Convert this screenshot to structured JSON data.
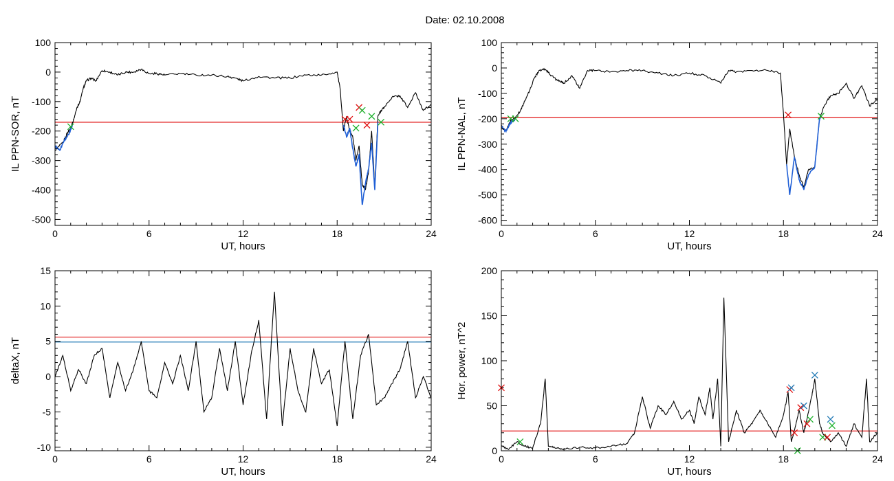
{
  "page": {
    "date_label": "Date:  02.10.2008"
  },
  "chart_data": [
    {
      "id": "p1",
      "type": "line",
      "ylabel": "IL PPN-SOR, nT",
      "xlabel": "UT, hours",
      "xlim": [
        0,
        24
      ],
      "ylim": [
        -520,
        100
      ],
      "x_ticks": [
        0,
        6,
        12,
        18,
        24
      ],
      "x_tick_labels": [
        "0",
        "6",
        "12",
        "18",
        "24"
      ],
      "y_ticks": [
        100,
        0,
        -100,
        -200,
        -300,
        -400,
        -500
      ],
      "y_tick_labels": [
        "100",
        "0",
        "-100",
        "-200",
        "-300",
        "-400",
        "-500"
      ],
      "series": [
        {
          "role": "signal",
          "color": "#000000",
          "x": [
            0,
            0.5,
            0.8,
            1.0,
            1.2,
            1.4,
            1.6,
            1.8,
            2.0,
            2.3,
            2.6,
            3.0,
            3.5,
            4.0,
            4.5,
            5.0,
            5.5,
            6.0,
            6.5,
            7.0,
            8.0,
            9.0,
            10.0,
            11.0,
            11.5,
            12.0,
            13.0,
            14.0,
            15.0,
            16.0,
            17.0,
            18.0,
            18.2,
            18.4,
            18.6,
            18.8,
            19.0,
            19.2,
            19.4,
            19.6,
            19.8,
            20.0,
            20.2,
            20.4,
            20.6,
            20.8,
            21.0,
            21.5,
            22.0,
            22.5,
            23.0,
            23.5,
            24.0
          ],
          "y": [
            -265,
            -240,
            -205,
            -190,
            -160,
            -120,
            -100,
            -55,
            -30,
            -20,
            -30,
            5,
            0,
            -10,
            0,
            0,
            10,
            -5,
            -5,
            -10,
            -5,
            -10,
            -10,
            -15,
            -20,
            -30,
            -15,
            -20,
            -20,
            -10,
            -10,
            0,
            -60,
            -200,
            -150,
            -200,
            -220,
            -300,
            -250,
            -380,
            -400,
            -340,
            -200,
            -390,
            -150,
            -130,
            -120,
            -85,
            -80,
            -120,
            -70,
            -130,
            -110
          ]
        },
        {
          "role": "substorm",
          "color": "#1f5fd6",
          "x": [
            0,
            0.3,
            0.6,
            0.9,
            1.1
          ],
          "y": [
            -250,
            -265,
            -230,
            -210,
            -180
          ]
        },
        {
          "role": "substorm",
          "color": "#1f5fd6",
          "x": [
            18.4,
            18.6,
            18.8,
            19.0,
            19.2,
            19.4,
            19.6,
            19.8,
            20.0,
            20.2,
            20.4,
            20.6
          ],
          "y": [
            -180,
            -220,
            -190,
            -260,
            -320,
            -280,
            -450,
            -380,
            -330,
            -240,
            -400,
            -170
          ]
        }
      ],
      "threshold_lines": [
        {
          "y": -170,
          "color": "#e01010"
        }
      ],
      "markers": [
        {
          "x": 1.0,
          "y": -185,
          "color": "#1ab02a"
        },
        {
          "x": 18.5,
          "y": -160,
          "color": "#e01010"
        },
        {
          "x": 18.8,
          "y": -160,
          "color": "#e01010"
        },
        {
          "x": 19.2,
          "y": -190,
          "color": "#1ab02a"
        },
        {
          "x": 19.4,
          "y": -120,
          "color": "#e01010"
        },
        {
          "x": 19.6,
          "y": -130,
          "color": "#1ab02a"
        },
        {
          "x": 19.9,
          "y": -180,
          "color": "#e01010"
        },
        {
          "x": 20.2,
          "y": -150,
          "color": "#1ab02a"
        },
        {
          "x": 20.8,
          "y": -170,
          "color": "#1ab02a"
        }
      ]
    },
    {
      "id": "p2",
      "type": "line",
      "ylabel": "IL PPN-NAL, nT",
      "xlabel": "UT, hours",
      "xlim": [
        0,
        24
      ],
      "ylim": [
        -620,
        100
      ],
      "x_ticks": [
        0,
        6,
        12,
        18,
        24
      ],
      "x_tick_labels": [
        "0",
        "6",
        "12",
        "18",
        "24"
      ],
      "y_ticks": [
        100,
        0,
        -100,
        -200,
        -300,
        -400,
        -500,
        -600
      ],
      "y_tick_labels": [
        "100",
        "0",
        "-100",
        "-200",
        "-300",
        "-400",
        "-500",
        "-600"
      ],
      "series": [
        {
          "role": "signal",
          "color": "#000000",
          "x": [
            0,
            0.3,
            0.6,
            0.9,
            1.2,
            1.5,
            1.8,
            2.1,
            2.4,
            2.8,
            3.2,
            3.6,
            4.0,
            4.5,
            5.0,
            5.5,
            6.0,
            7.0,
            8.0,
            9.0,
            10.0,
            11.0,
            12.0,
            13.0,
            14.0,
            14.5,
            15.0,
            16.0,
            17.0,
            17.8,
            18.0,
            18.2,
            18.4,
            18.7,
            19.0,
            19.3,
            19.6,
            20.0,
            20.3,
            20.6,
            21.0,
            21.5,
            22.0,
            22.5,
            23.0,
            23.5,
            24.0
          ],
          "y": [
            -230,
            -250,
            -205,
            -195,
            -170,
            -130,
            -90,
            -40,
            -10,
            -5,
            -30,
            -50,
            -60,
            -30,
            -80,
            -10,
            -10,
            -15,
            -10,
            -10,
            -20,
            -30,
            -20,
            -30,
            -60,
            -10,
            -15,
            -10,
            -10,
            -20,
            -180,
            -380,
            -240,
            -350,
            -420,
            -470,
            -400,
            -390,
            -200,
            -150,
            -110,
            -100,
            -60,
            -120,
            -70,
            -150,
            -120
          ]
        },
        {
          "role": "substorm",
          "color": "#1f5fd6",
          "x": [
            0,
            0.3,
            0.6,
            0.9
          ],
          "y": [
            -230,
            -250,
            -215,
            -200
          ]
        },
        {
          "role": "substorm",
          "color": "#1f5fd6",
          "x": [
            18.2,
            18.4,
            18.7,
            19.0,
            19.3,
            19.6,
            20.0,
            20.3,
            20.4
          ],
          "y": [
            -380,
            -500,
            -350,
            -440,
            -480,
            -420,
            -390,
            -200,
            -190
          ]
        }
      ],
      "threshold_lines": [
        {
          "y": -195,
          "color": "#e01010"
        }
      ],
      "markers": [
        {
          "x": 0.6,
          "y": -200,
          "color": "#1ab02a"
        },
        {
          "x": 0.9,
          "y": -200,
          "color": "#1ab02a"
        },
        {
          "x": 18.3,
          "y": -185,
          "color": "#e01010"
        },
        {
          "x": 20.4,
          "y": -190,
          "color": "#1ab02a"
        }
      ]
    },
    {
      "id": "p3",
      "type": "line",
      "ylabel": "deltaX, nT",
      "xlabel": "UT, hours",
      "xlim": [
        0,
        24
      ],
      "ylim": [
        -10.5,
        15
      ],
      "x_ticks": [
        0,
        6,
        12,
        18,
        24
      ],
      "x_tick_labels": [
        "0",
        "6",
        "12",
        "18",
        "24"
      ],
      "y_ticks": [
        15,
        10,
        5,
        0,
        -5,
        -10
      ],
      "y_tick_labels": [
        "15",
        "10",
        "5",
        "0",
        "-5",
        "-10"
      ],
      "series": [
        {
          "role": "signal",
          "color": "#000000",
          "x": [
            0,
            0.5,
            1.0,
            1.5,
            2.0,
            2.5,
            3.0,
            3.5,
            4.0,
            4.5,
            5.0,
            5.5,
            6.0,
            6.5,
            7.0,
            7.5,
            8.0,
            8.5,
            9.0,
            9.5,
            10.0,
            10.5,
            11.0,
            11.5,
            12.0,
            12.5,
            13.0,
            13.5,
            14.0,
            14.5,
            15.0,
            15.5,
            16.0,
            16.5,
            17.0,
            17.5,
            18.0,
            18.5,
            19.0,
            19.5,
            20.0,
            20.5,
            21.0,
            21.5,
            22.0,
            22.5,
            23.0,
            23.5,
            24.0
          ],
          "y": [
            0,
            3,
            -2,
            1,
            -1,
            3,
            4,
            -3,
            2,
            -2,
            1,
            5,
            -2,
            -3,
            2,
            -1,
            3,
            -2,
            5,
            -5,
            -3,
            4,
            -2,
            5,
            -4,
            3,
            8,
            -6,
            12,
            -7,
            4,
            -2,
            -5,
            4,
            -1,
            1,
            -7,
            5,
            -6,
            3,
            6,
            -4,
            -3,
            -1,
            1,
            5,
            -3,
            0,
            -3
          ]
        }
      ],
      "threshold_lines": [
        {
          "y": 5.6,
          "color": "#e01010"
        },
        {
          "y": 4.9,
          "color": "#1f78b4"
        }
      ],
      "markers": []
    },
    {
      "id": "p4",
      "type": "line",
      "ylabel": "Hor. power, nT^2",
      "xlabel": "UT, hours",
      "xlim": [
        0,
        24
      ],
      "ylim": [
        0,
        200
      ],
      "x_ticks": [
        0,
        6,
        12,
        18,
        24
      ],
      "x_tick_labels": [
        "0",
        "6",
        "12",
        "18",
        "24"
      ],
      "y_ticks": [
        200,
        150,
        100,
        50,
        0
      ],
      "y_tick_labels": [
        "200",
        "150",
        "100",
        "50",
        "0"
      ],
      "series": [
        {
          "role": "signal",
          "color": "#000000",
          "x": [
            0,
            0.5,
            1.0,
            1.5,
            2.0,
            2.5,
            2.8,
            3.0,
            3.5,
            4.0,
            5.0,
            6.0,
            7.0,
            8.0,
            8.5,
            9.0,
            9.5,
            10.0,
            10.5,
            11.0,
            11.5,
            12.0,
            12.3,
            12.6,
            13.0,
            13.3,
            13.5,
            13.8,
            14.0,
            14.2,
            14.5,
            15.0,
            15.5,
            16.0,
            16.5,
            17.0,
            17.5,
            18.0,
            18.3,
            18.5,
            18.8,
            19.0,
            19.3,
            19.5,
            19.8,
            20.0,
            20.3,
            20.5,
            21.0,
            21.5,
            22.0,
            22.5,
            23.0,
            23.3,
            23.5,
            24.0
          ],
          "y": [
            5,
            2,
            10,
            5,
            3,
            30,
            80,
            5,
            3,
            2,
            4,
            3,
            5,
            8,
            20,
            60,
            25,
            50,
            40,
            55,
            35,
            45,
            30,
            60,
            40,
            70,
            35,
            80,
            5,
            170,
            10,
            45,
            20,
            30,
            45,
            30,
            15,
            40,
            65,
            10,
            30,
            45,
            20,
            35,
            60,
            80,
            30,
            20,
            10,
            20,
            5,
            30,
            15,
            80,
            10,
            20
          ]
        }
      ],
      "threshold_lines": [
        {
          "y": 22,
          "color": "#e01010"
        }
      ],
      "markers": [
        {
          "x": 0.0,
          "y": 70,
          "color": "#e01010"
        },
        {
          "x": 1.2,
          "y": 10,
          "color": "#1ab02a"
        },
        {
          "x": 18.4,
          "y": 68,
          "color": "#e01010"
        },
        {
          "x": 18.5,
          "y": 70,
          "color": "#1f78b4"
        },
        {
          "x": 18.7,
          "y": 20,
          "color": "#e01010"
        },
        {
          "x": 18.9,
          "y": 0,
          "color": "#1ab02a"
        },
        {
          "x": 19.1,
          "y": 48,
          "color": "#e01010"
        },
        {
          "x": 19.3,
          "y": 50,
          "color": "#1f78b4"
        },
        {
          "x": 19.5,
          "y": 30,
          "color": "#e01010"
        },
        {
          "x": 19.7,
          "y": 35,
          "color": "#1ab02a"
        },
        {
          "x": 20.0,
          "y": 84,
          "color": "#1f78b4"
        },
        {
          "x": 20.5,
          "y": 15,
          "color": "#1ab02a"
        },
        {
          "x": 20.8,
          "y": 15,
          "color": "#e01010"
        },
        {
          "x": 21.0,
          "y": 35,
          "color": "#1f78b4"
        },
        {
          "x": 21.1,
          "y": 28,
          "color": "#1ab02a"
        }
      ]
    }
  ]
}
